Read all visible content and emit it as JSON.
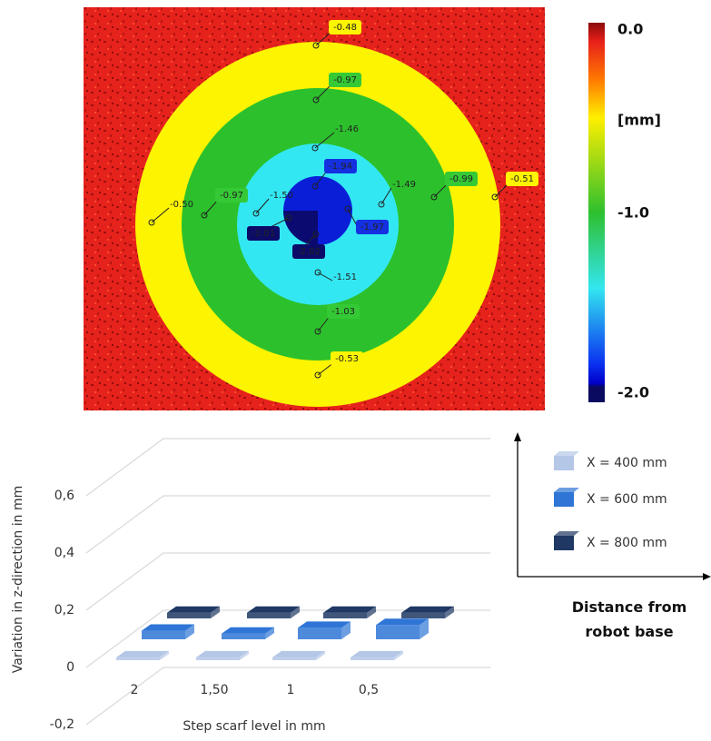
{
  "scan": {
    "annotations": [
      "-0.48",
      "-0.97",
      "-1.46",
      "-1.94",
      "-0.50",
      "-0.97",
      "-1.50",
      "-1.49",
      "-0.99",
      "-0.51",
      "-2.01",
      "-1.97",
      "-2.02",
      "-1.51",
      "-1.03",
      "-0.53"
    ],
    "colorbar_labels": [
      "0.0",
      "[mm]",
      "-1.0",
      "-2.0"
    ]
  },
  "chart_data": {
    "type": "bar3d",
    "y_label": "Variation in z-direction in mm",
    "x_label": "Step scarf level in mm",
    "depth_axis_label": "Distance from robot base",
    "categories": [
      "2",
      "1,50",
      "1",
      "0,5"
    ],
    "series": [
      {
        "name": "X = 400 mm",
        "color": "#b4c7e7",
        "values": [
          0.01,
          0.01,
          0.01,
          0.01
        ]
      },
      {
        "name": "X = 600 mm",
        "color": "#2e75d6",
        "values": [
          0.03,
          0.02,
          0.04,
          0.05
        ]
      },
      {
        "name": "X = 800 mm",
        "color": "#1f3864",
        "values": [
          0.02,
          0.02,
          0.02,
          0.02
        ]
      }
    ],
    "ylim": [
      -0.2,
      0.8
    ],
    "yticks": [
      {
        "value": -0.2,
        "label": "-0,2"
      },
      0,
      {
        "value": 0.2,
        "label": "0,2"
      },
      {
        "value": 0.4,
        "label": "0,4"
      },
      {
        "value": 0.6,
        "label": "0,6"
      }
    ],
    "grid": true
  }
}
